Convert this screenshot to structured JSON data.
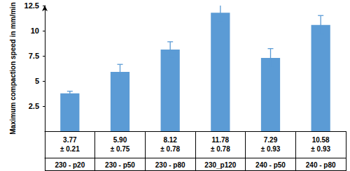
{
  "chart_data": {
    "type": "bar",
    "y_label": "Maximum compaction speed in mm/min",
    "categories": [
      "230 - p20",
      "230 - p50",
      "230 - p80",
      "230_p120",
      "240 - p50",
      "240 - p80"
    ],
    "values": [
      3.77,
      5.9,
      8.12,
      11.78,
      7.29,
      10.58
    ],
    "value_labels": [
      "3.77",
      "5.90",
      "8.12",
      "11.78",
      "7.29",
      "10.58"
    ],
    "errors": [
      0.21,
      0.75,
      0.78,
      0.78,
      0.93,
      0.93
    ],
    "error_labels": [
      "± 0.21",
      "± 0.75",
      "± 0.78",
      "± 0.78",
      "± 0.93",
      "± 0.93"
    ],
    "color": "#5b9bd5",
    "ylim": [
      0,
      12.5
    ],
    "yticks": [
      2.5,
      5,
      7.5,
      10,
      12.5
    ],
    "grid": false,
    "data_labels": true
  }
}
